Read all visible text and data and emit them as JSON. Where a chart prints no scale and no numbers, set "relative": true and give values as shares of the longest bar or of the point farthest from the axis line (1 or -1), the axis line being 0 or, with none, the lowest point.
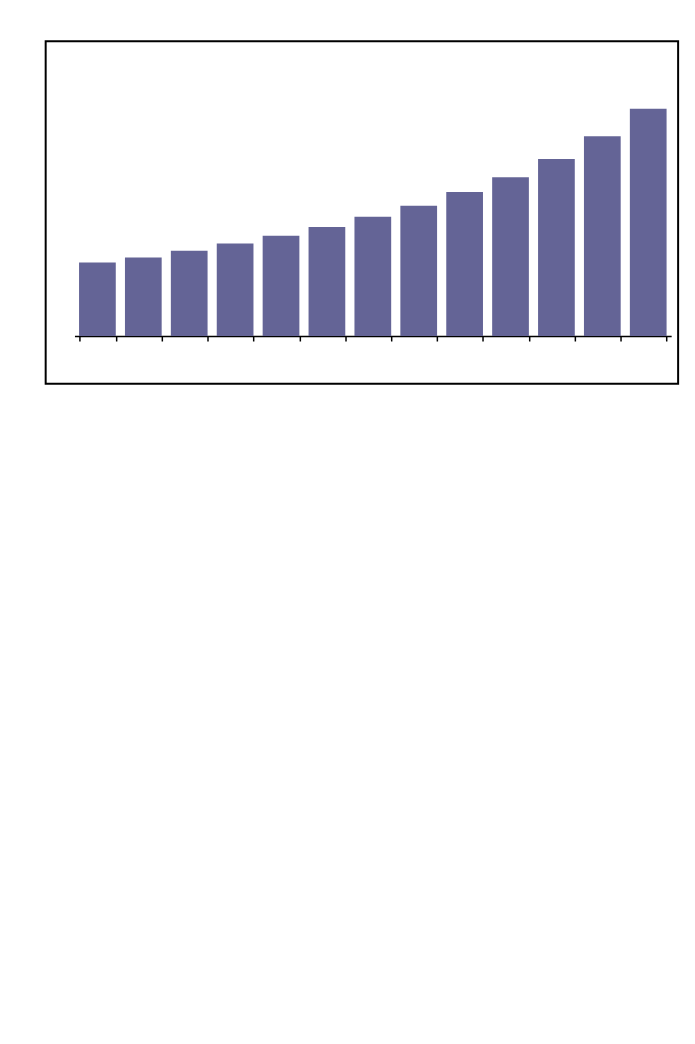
{
  "chart_data": {
    "type": "bar",
    "relative": true,
    "color": "#646496",
    "categories": [
      null,
      null,
      null,
      null,
      null,
      null,
      null,
      null,
      null,
      null,
      null,
      null,
      null
    ],
    "values": [
      0.323,
      0.345,
      0.375,
      0.407,
      0.441,
      0.48,
      0.525,
      0.573,
      0.634,
      0.698,
      0.779,
      0.879,
      1.0
    ]
  }
}
